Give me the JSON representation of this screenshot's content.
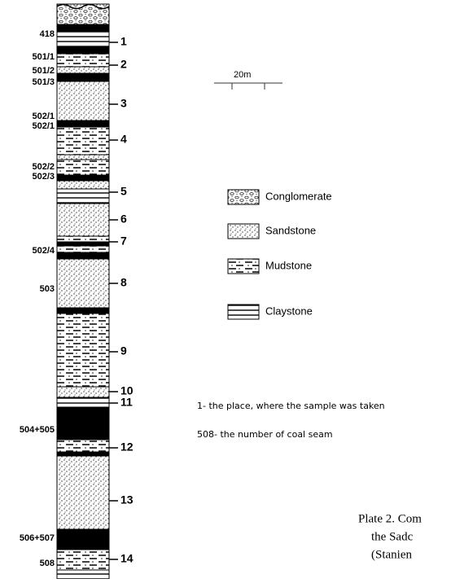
{
  "seam_labels": [
    "418",
    "501/1",
    "501/2",
    "501/3",
    "502/1",
    "502/1",
    "502/2",
    "502/3",
    "502/4",
    "503",
    "504+505",
    "506+507",
    "508"
  ],
  "sample_numbers": [
    "1",
    "2",
    "3",
    "4",
    "5",
    "6",
    "7",
    "8",
    "9",
    "10",
    "11",
    "12",
    "13",
    "14"
  ],
  "scale": {
    "label": "20m"
  },
  "legend": [
    {
      "label": "Conglomerate"
    },
    {
      "label": "Sandstone"
    },
    {
      "label": "Mudstone"
    },
    {
      "label": "Claystone"
    }
  ],
  "notes": [
    "1- the place, where the sample was taken",
    "508- the number of coal seam"
  ],
  "caption": [
    "Plate 2. Com",
    "the Sadc",
    "(Stanien"
  ]
}
